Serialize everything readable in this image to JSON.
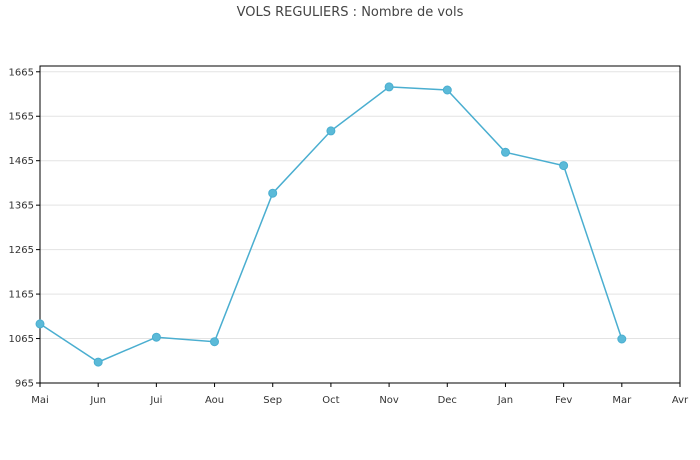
{
  "chart_data": {
    "type": "line",
    "title": "VOLS REGULIERS : Nombre de vols",
    "xlabel": "",
    "ylabel": "",
    "categories": [
      "Mai",
      "Jun",
      "Jui",
      "Aou",
      "Sep",
      "Oct",
      "Nov",
      "Dec",
      "Jan",
      "Fev",
      "Mar",
      "Avr"
    ],
    "series": [
      {
        "values": [
          1098,
          1012,
          1068,
          1058,
          1392,
          1532,
          1631,
          1624,
          1484,
          1454,
          1064,
          null
        ]
      }
    ],
    "yticks": [
      965,
      1065,
      1165,
      1265,
      1365,
      1465,
      1565,
      1665
    ],
    "ylim": [
      965,
      1678
    ],
    "grid": true,
    "legend": "none",
    "colors": {
      "line": "#4aaed0",
      "marker": "#5bbad8",
      "grid": "#e3e3e3",
      "axis": "#000000"
    }
  }
}
